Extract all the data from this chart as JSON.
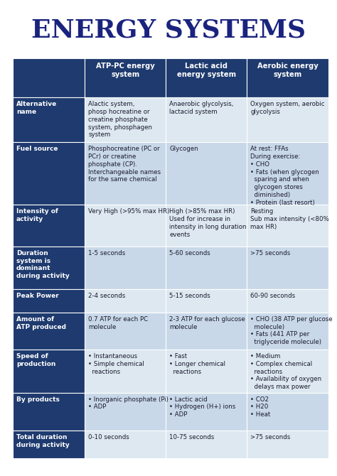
{
  "title": "ENERGY SYSTEMS",
  "title_color": "#1a237e",
  "bg_color": "#ffffff",
  "header_bg": "#1e3a6e",
  "header_text_color": "#ffffff",
  "row_label_bg": "#1e3a6e",
  "row_label_text_color": "#ffffff",
  "cell_bg_even": "#dde8f0",
  "cell_bg_odd": "#c8d8e8",
  "col_headers": [
    "ATP-PC energy\nsystem",
    "Lactic acid\nenergy system",
    "Aerobic energy\nsystem"
  ],
  "row_labels": [
    "Alternative\nname",
    "Fuel source",
    "Intensity of\nactivity",
    "Duration\nsystem is\ndominant\nduring activity",
    "Peak Power",
    "Amount of\nATP produced",
    "Speed of\nproduction",
    "By products",
    "Total duration\nduring activity"
  ],
  "cells": [
    [
      "Alactic system,\nphosp hocreatine or\ncreatine phosphate\nsystem, phosphagen\nsystem",
      "Anaerobic glycolysis,\nlactacid system",
      "Oxygen system, aerobic\nglycolysis"
    ],
    [
      "Phosphocreatine (PC or\nPCr) or creatine\nphosphate (CP).\nInterchangeable names\nfor the same chemical",
      "Glycogen",
      "At rest: FFAs\nDuring exercise:\n• CHO\n• Fats (when glycogen\n  sparing and when\n  glycogen stores\n  diminished)\n• Protein (last resort)"
    ],
    [
      "Very High (>95% max HR)",
      "High (>85% max HR)\nUsed for increase in\nintensity in long duration\nevents",
      "Resting\nSub max intensity (<80%\nmax HR)"
    ],
    [
      "1-5 seconds",
      "5-60 seconds",
      ">75 seconds"
    ],
    [
      "2-4 seconds",
      "5-15 seconds",
      "60-90 seconds"
    ],
    [
      "0.7 ATP for each PC\nmolecule",
      "2-3 ATP for each glucose\nmolecule",
      "• CHO (38 ATP per glucose\n  molecule)\n• Fats (441 ATP per\n  triglyceride molecule)"
    ],
    [
      "• Instantaneous\n• Simple chemical\n  reactions",
      "• Fast\n• Longer chemical\n  reactions",
      "• Medium\n• Complex chemical\n  reactions\n• Availability of oxygen\n  delays max power"
    ],
    [
      "• Inorganic phosphate (Pi)\n• ADP",
      "• Lactic acid\n• Hydrogen (H+) ions\n• ADP",
      "• CO2\n• H20\n• Heat"
    ],
    [
      "0-10 seconds",
      "10-75 seconds",
      ">75 seconds"
    ]
  ],
  "fig_width": 4.74,
  "fig_height": 6.7,
  "dpi": 100
}
